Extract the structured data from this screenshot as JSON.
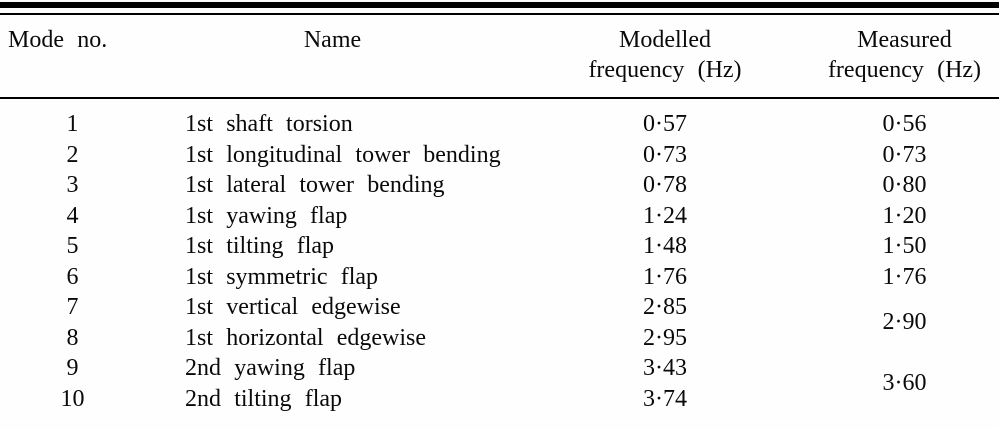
{
  "table": {
    "headers": [
      "Mode no.",
      "Name",
      "Modelled\nfrequency (Hz)",
      "Measured\nfrequency (Hz)"
    ],
    "rows": [
      {
        "mode": "1",
        "name": "1st shaft torsion",
        "modelled": "0·57",
        "measured": "0·56"
      },
      {
        "mode": "2",
        "name": "1st longitudinal tower bending",
        "modelled": "0·73",
        "measured": "0·73"
      },
      {
        "mode": "3",
        "name": "1st lateral tower bending",
        "modelled": "0·78",
        "measured": "0·80"
      },
      {
        "mode": "4",
        "name": "1st yawing flap",
        "modelled": "1·24",
        "measured": "1·20"
      },
      {
        "mode": "5",
        "name": "1st tilting flap",
        "modelled": "1·48",
        "measured": "1·50"
      },
      {
        "mode": "6",
        "name": "1st symmetric flap",
        "modelled": "1·76",
        "measured": "1·76"
      },
      {
        "mode": "7",
        "name": "1st vertical edgewise",
        "modelled": "2·85",
        "measured": "2·90"
      },
      {
        "mode": "8",
        "name": "1st horizontal edgewise",
        "modelled": "2·95"
      },
      {
        "mode": "9",
        "name": "2nd yawing flap",
        "modelled": "3·43",
        "measured": "3·60"
      },
      {
        "mode": "10",
        "name": "2nd tilting flap",
        "modelled": "3·74"
      }
    ],
    "colors": {
      "text": "#0a0a0a",
      "rule": "#000000",
      "background": "#fefefe"
    }
  }
}
